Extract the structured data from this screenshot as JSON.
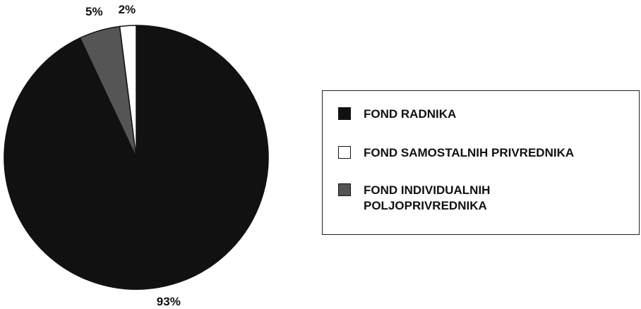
{
  "chart_data": {
    "type": "pie",
    "categories": [
      "FOND RADNIKA",
      "FOND SAMOSTALNIH PRIVREDNIKA",
      "FOND INDIVIDUALNIH\nPOLJOPRIVREDNIKA"
    ],
    "values": [
      93,
      2,
      5
    ],
    "value_labels": [
      "93%",
      "2%",
      "5%"
    ],
    "colors": [
      "#111111",
      "#ffffff",
      "#555555"
    ],
    "legend_placement": "right",
    "title": ""
  }
}
